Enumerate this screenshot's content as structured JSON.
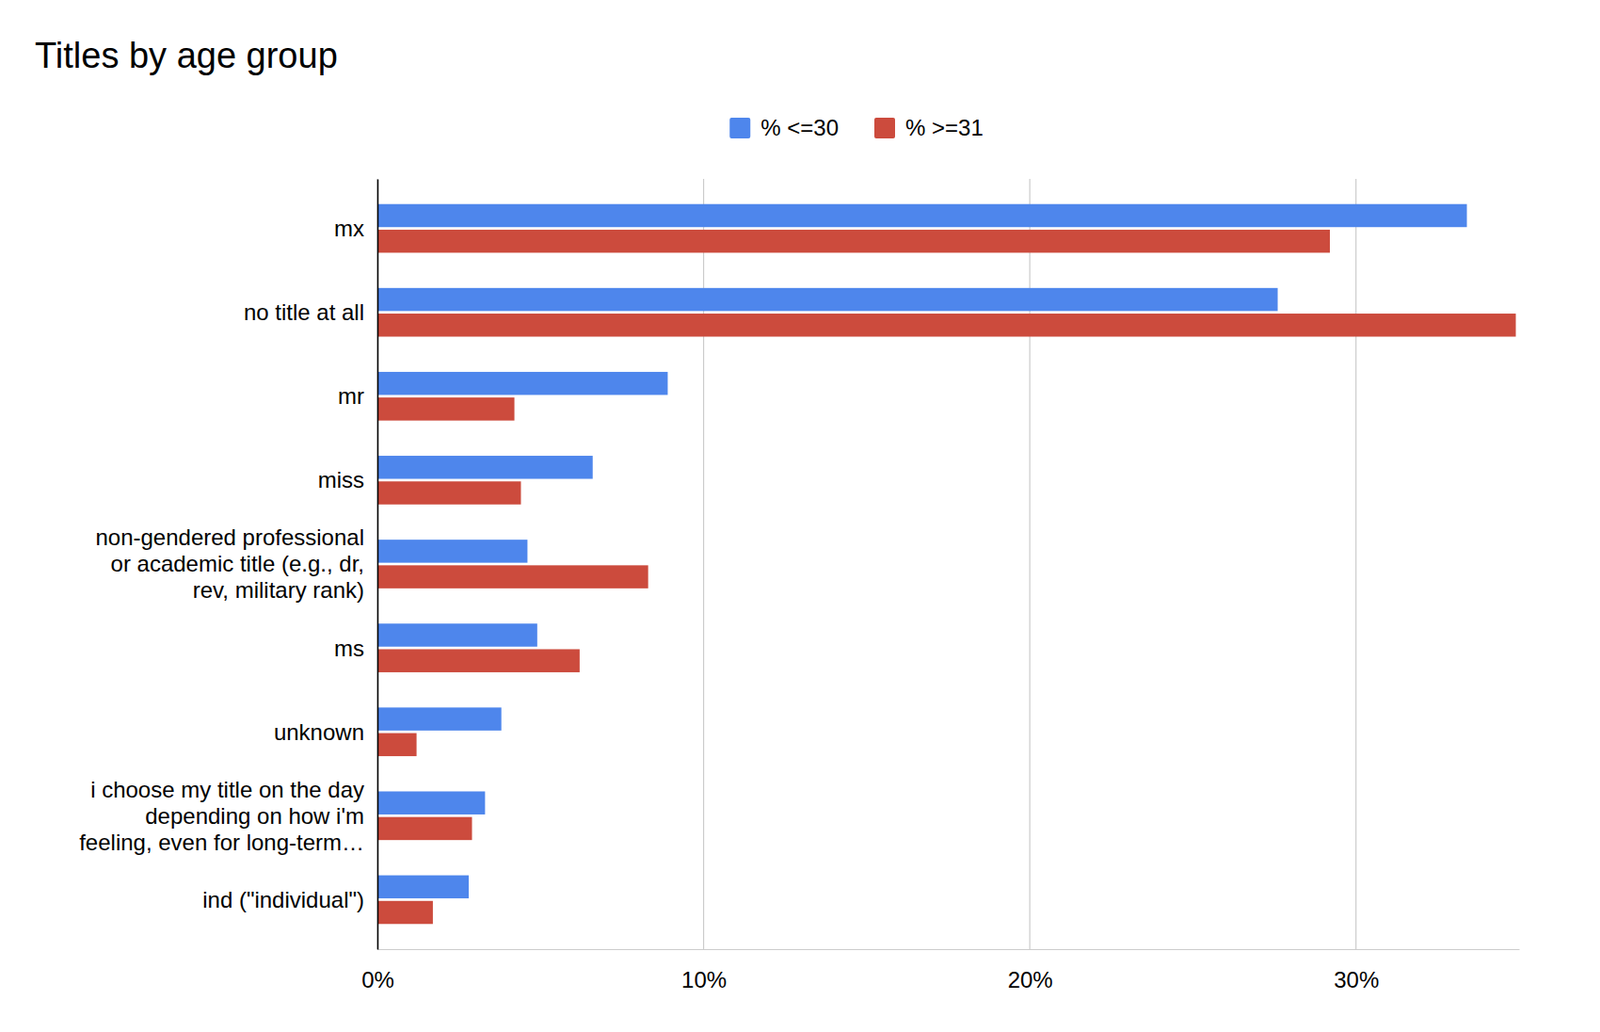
{
  "chart_data": {
    "type": "bar",
    "title": "Titles by age group",
    "orientation": "horizontal",
    "grid": true,
    "legend": "top",
    "categories": [
      "mx",
      "no title at all",
      "mr",
      "miss",
      "non-gendered professional\nor academic title (e.g., dr,\nrev, military rank)",
      "ms",
      "unknown",
      "i choose my title on the day\ndepending on how i'm\nfeeling, even for long-term…",
      "ind (\"individual\")"
    ],
    "series": [
      {
        "name": "% <=30",
        "color": "#4e86ec",
        "values": [
          33.4,
          27.6,
          8.9,
          6.6,
          4.6,
          4.9,
          3.8,
          3.3,
          2.8
        ]
      },
      {
        "name": "% >=31",
        "color": "#cc4b3d",
        "values": [
          29.2,
          34.9,
          4.2,
          4.4,
          8.3,
          6.2,
          1.2,
          2.9,
          1.7
        ]
      }
    ],
    "xlim": [
      0,
      35
    ],
    "xticks": [
      {
        "value": 0,
        "label": "0%"
      },
      {
        "value": 10,
        "label": "10%"
      },
      {
        "value": 20,
        "label": "20%"
      },
      {
        "value": 30,
        "label": "30%"
      }
    ]
  }
}
